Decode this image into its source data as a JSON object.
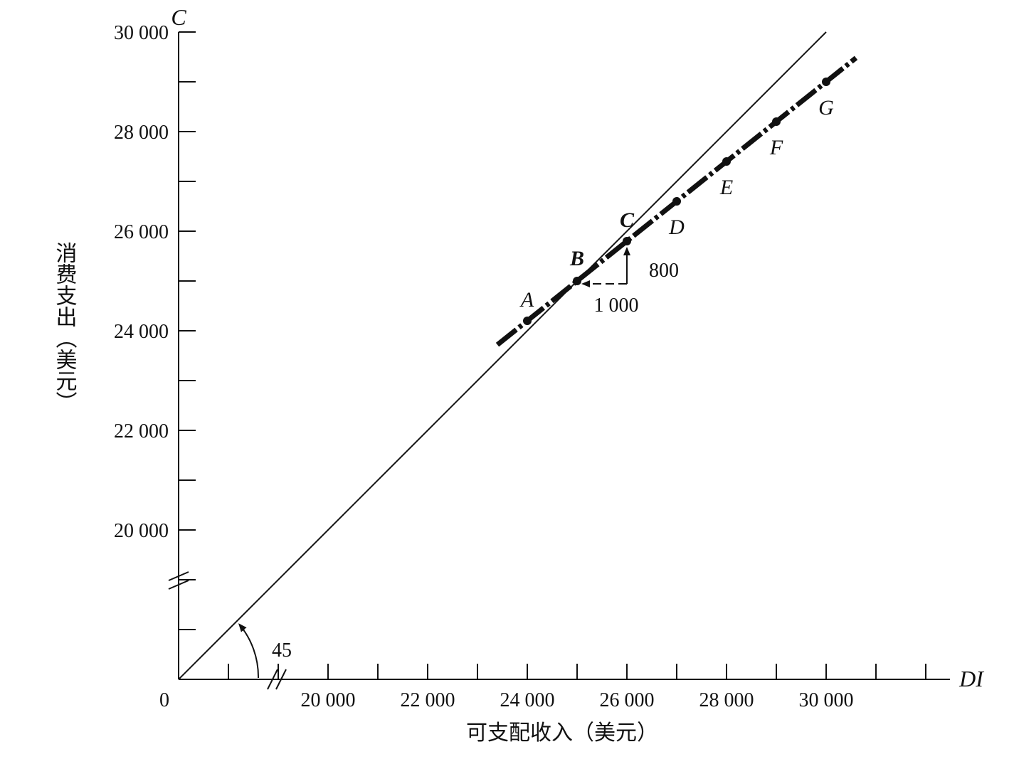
{
  "chart_data": {
    "type": "line",
    "xlabel": "可支配收入（美元）",
    "ylabel": "消费支出（美元）",
    "x_axis_symbol": "DI",
    "y_axis_symbol": "C",
    "origin_label": "0",
    "x_tick_labels": [
      "20 000",
      "22 000",
      "24 000",
      "26 000",
      "28 000",
      "30 000"
    ],
    "y_tick_labels": [
      "20 000",
      "22 000",
      "24 000",
      "26 000",
      "28 000",
      "30 000"
    ],
    "xlim": [
      18000,
      32000
    ],
    "ylim": [
      18000,
      30000
    ],
    "axis_breaks": [
      "x",
      "y"
    ],
    "grid": false,
    "series": [
      {
        "style": "solid-thin",
        "points": [
          [
            0,
            0
          ],
          [
            30000,
            30000
          ]
        ]
      },
      {
        "style": "dash-dot-thick",
        "points": [
          {
            "label": "A",
            "x": 24000,
            "y": 24200
          },
          {
            "label": "B",
            "x": 25000,
            "y": 25000
          },
          {
            "label": "C",
            "x": 26000,
            "y": 25800
          },
          {
            "label": "D",
            "x": 27000,
            "y": 26600
          },
          {
            "label": "E",
            "x": 28000,
            "y": 27400
          },
          {
            "label": "F",
            "x": 29000,
            "y": 28200
          },
          {
            "label": "G",
            "x": 30000,
            "y": 29000
          }
        ]
      }
    ],
    "annotations": {
      "angle_label": "45",
      "run_label": "1 000",
      "rise_label": "800"
    }
  }
}
